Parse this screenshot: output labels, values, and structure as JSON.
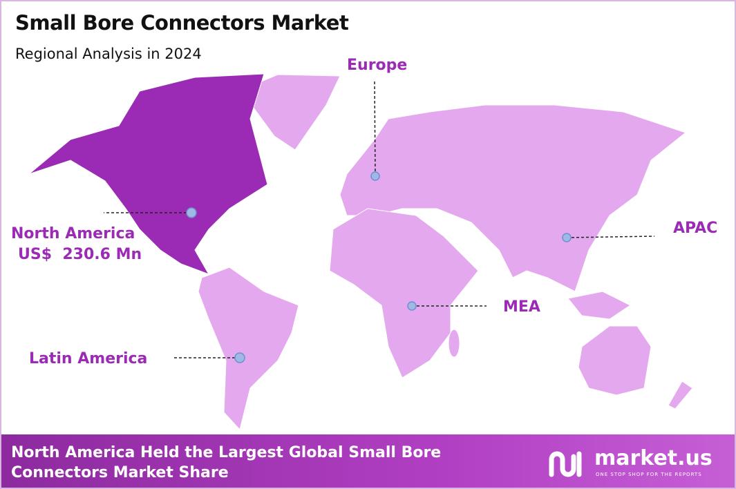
{
  "header": {
    "title": "Small Bore Connectors Market",
    "subtitle": "Regional Analysis in 2024"
  },
  "regions": [
    {
      "name": "North America",
      "value": "US$  230.6 Mn"
    },
    {
      "name": "Europe"
    },
    {
      "name": "APAC"
    },
    {
      "name": "MEA"
    },
    {
      "name": "Latin America"
    }
  ],
  "footer": {
    "text": "North America Held the Largest Global Small Bore Connectors Market Share",
    "logo": "market.us",
    "tagline": "ONE STOP SHOP FOR THE REPORTS"
  }
}
